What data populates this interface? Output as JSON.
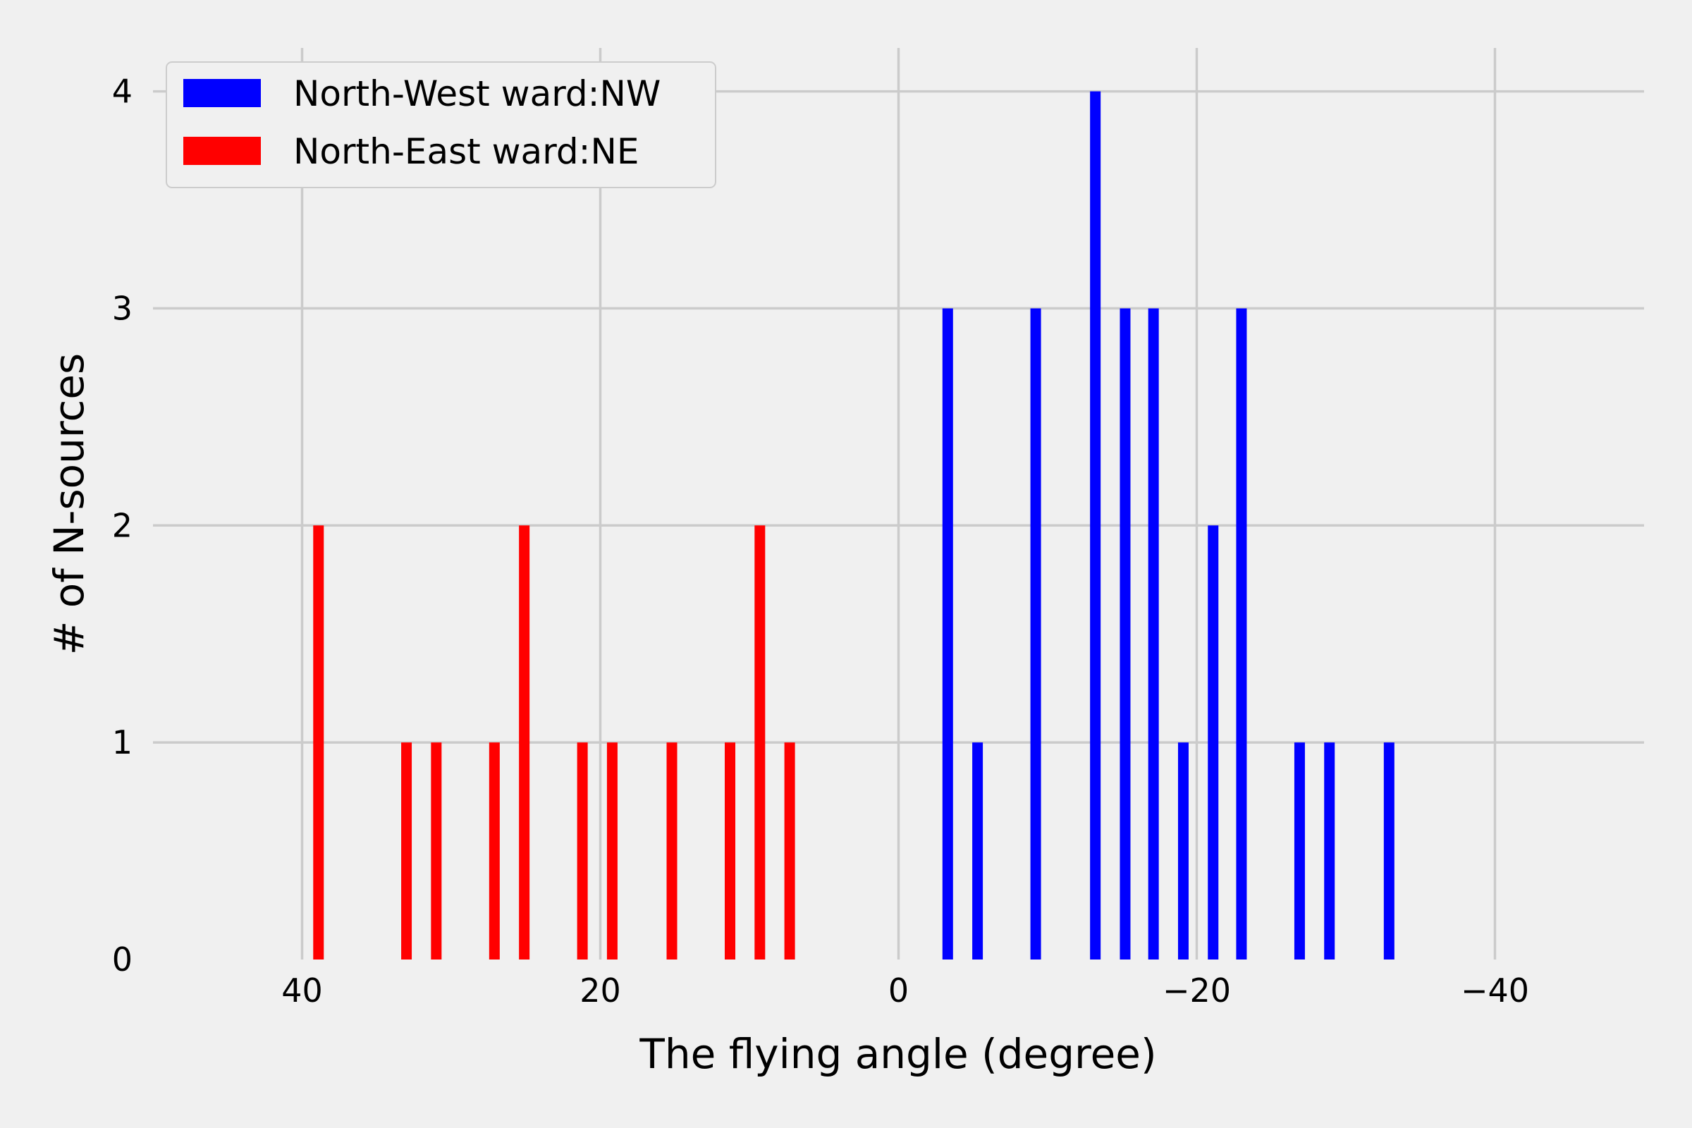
{
  "chart_data": {
    "type": "bar",
    "xlabel": "The flying angle (degree)",
    "ylabel": "# of N-sources",
    "xlim": [
      50,
      -50
    ],
    "ylim": [
      0,
      4.2
    ],
    "x_inverted": true,
    "grid": true,
    "legend_position": "top-left",
    "xticks": [
      40,
      20,
      0,
      -20,
      -40
    ],
    "xtick_labels": [
      "40",
      "20",
      "0",
      "−20",
      "−40"
    ],
    "yticks": [
      0,
      1,
      2,
      3,
      4
    ],
    "ytick_labels": [
      "0",
      "1",
      "2",
      "3",
      "4"
    ],
    "series": [
      {
        "name": "North-West ward:NW",
        "color": "#0000ff",
        "x": [
          -3.3,
          -5.3,
          -9.2,
          -13.2,
          -15.2,
          -17.1,
          -19.1,
          -21.1,
          -23.0,
          -26.9,
          -28.9,
          -32.9
        ],
        "values": [
          3,
          1,
          3,
          4,
          3,
          3,
          1,
          2,
          3,
          1,
          1,
          1
        ]
      },
      {
        "name": "North-East ward:NE",
        "color": "#ff0000",
        "x": [
          38.9,
          33.0,
          31.0,
          27.1,
          25.1,
          21.2,
          19.2,
          15.2,
          11.3,
          9.3,
          7.3
        ],
        "values": [
          2,
          1,
          1,
          1,
          2,
          1,
          1,
          1,
          1,
          2,
          1
        ]
      }
    ]
  }
}
